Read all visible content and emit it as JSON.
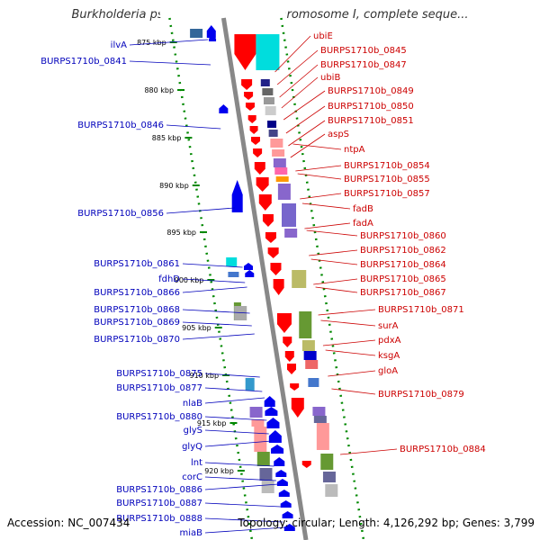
{
  "title": "Burkholderia pseudomallei 1710b chromosome I, complete seque...",
  "footer": {
    "accession": "Accession: NC_007434",
    "summary": "Topology: circular; Length: 4,126,292 bp; Genes: 3,799"
  },
  "colors": {
    "forward_gene": "#ff0000",
    "reverse_gene": "#0000ee",
    "forward_label": "#cc0000",
    "reverse_label": "#0000bb",
    "backbone": "#888888",
    "dotted_border": "#008800"
  },
  "ticks": [
    "875 kbp",
    "880 kbp",
    "885 kbp",
    "890 kbp",
    "895 kbp",
    "900 kbp",
    "905 kbp",
    "910 kbp",
    "915 kbp",
    "920 kbp"
  ],
  "left_labels": [
    "ilvA",
    "BURPS1710b_0841",
    "BURPS1710b_0846",
    "BURPS1710b_0856",
    "BURPS1710b_0861",
    "fdhD",
    "BURPS1710b_0866",
    "BURPS1710b_0868",
    "BURPS1710b_0869",
    "BURPS1710b_0870",
    "BURPS1710b_0875",
    "BURPS1710b_0877",
    "nlaB",
    "BURPS1710b_0880",
    "glyS",
    "glyQ",
    "lnt",
    "corC",
    "BURPS1710b_0886",
    "BURPS1710b_0887",
    "BURPS1710b_0888",
    "miaB"
  ],
  "right_labels": [
    "ubiE",
    "BURPS1710b_0845",
    "BURPS1710b_0847",
    "ubiB",
    "BURPS1710b_0849",
    "BURPS1710b_0850",
    "BURPS1710b_0851",
    "aspS",
    "ntpA",
    "BURPS1710b_0854",
    "BURPS1710b_0855",
    "BURPS1710b_0857",
    "fadB",
    "fadA",
    "BURPS1710b_0860",
    "BURPS1710b_0862",
    "BURPS1710b_0864",
    "BURPS1710b_0865",
    "BURPS1710b_0867",
    "BURPS1710b_0871",
    "surA",
    "pdxA",
    "ksgA",
    "gloA",
    "BURPS1710b_0879",
    "BURPS1710b_0884"
  ]
}
